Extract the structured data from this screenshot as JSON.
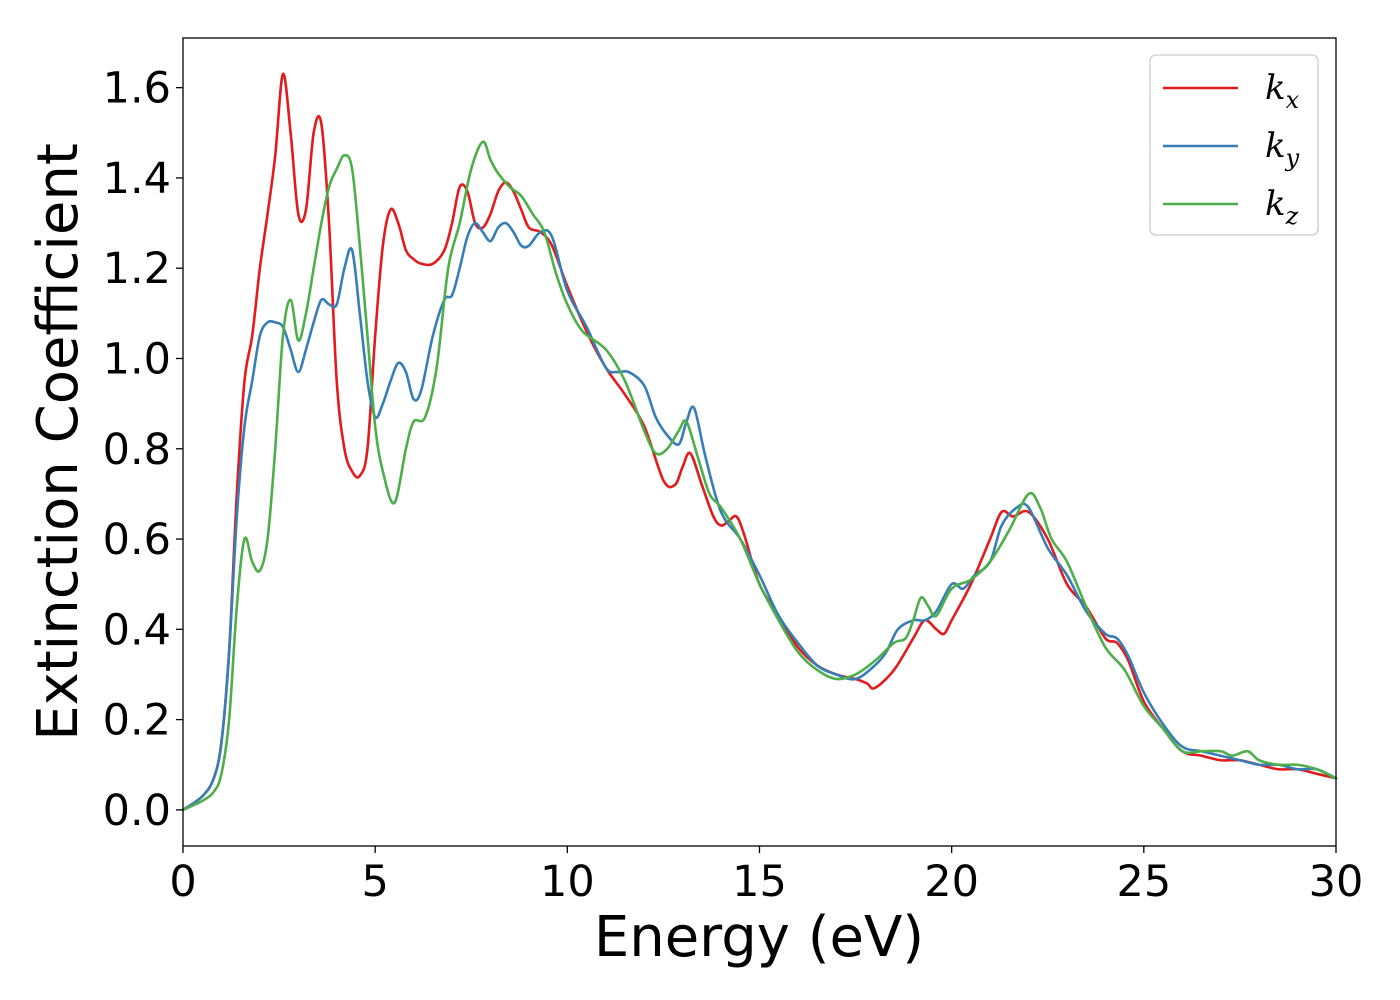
{
  "chart_data": {
    "type": "line",
    "title": "",
    "xlabel": "Energy (eV)",
    "ylabel": "Extinction Coefficient",
    "xlim": [
      0,
      30
    ],
    "ylim": [
      -0.08,
      1.71
    ],
    "xticks": [
      0,
      5,
      10,
      15,
      20,
      25,
      30
    ],
    "yticks": [
      0.0,
      0.2,
      0.4,
      0.6,
      0.8,
      1.0,
      1.2,
      1.4,
      1.6
    ],
    "grid": false,
    "legend_position": "top-right",
    "series": [
      {
        "name": "k_x",
        "legend_base": "k",
        "legend_sub": "x",
        "color": "#e41a1c",
        "x": [
          0,
          0.5,
          0.8,
          1.0,
          1.2,
          1.4,
          1.6,
          1.8,
          2.0,
          2.2,
          2.4,
          2.6,
          2.8,
          3.0,
          3.2,
          3.4,
          3.6,
          3.8,
          4.0,
          4.2,
          4.4,
          4.6,
          4.8,
          5.0,
          5.2,
          5.4,
          5.6,
          5.8,
          6.0,
          6.2,
          6.5,
          6.8,
          7.0,
          7.2,
          7.4,
          7.6,
          7.8,
          8.0,
          8.2,
          8.4,
          8.6,
          8.8,
          9.0,
          9.3,
          9.6,
          10.0,
          10.5,
          11.0,
          11.5,
          12.0,
          12.5,
          12.8,
          13.0,
          13.2,
          13.5,
          13.8,
          14.0,
          14.2,
          14.4,
          14.6,
          15.0,
          15.5,
          16.0,
          16.5,
          17.0,
          17.5,
          17.8,
          18.0,
          18.5,
          19.0,
          19.3,
          19.6,
          19.8,
          20.0,
          20.5,
          21.0,
          21.3,
          21.6,
          22.0,
          22.5,
          23.0,
          23.5,
          24.0,
          24.3,
          24.6,
          25.0,
          25.5,
          26.0,
          26.5,
          27.0,
          27.5,
          28.0,
          28.5,
          29.0,
          29.5,
          30.0
        ],
        "y": [
          0.0,
          0.03,
          0.07,
          0.15,
          0.35,
          0.7,
          0.95,
          1.05,
          1.2,
          1.32,
          1.45,
          1.63,
          1.5,
          1.32,
          1.33,
          1.5,
          1.52,
          1.3,
          0.95,
          0.8,
          0.75,
          0.74,
          0.8,
          1.05,
          1.25,
          1.33,
          1.3,
          1.24,
          1.22,
          1.21,
          1.21,
          1.24,
          1.3,
          1.38,
          1.37,
          1.3,
          1.29,
          1.32,
          1.37,
          1.39,
          1.37,
          1.33,
          1.29,
          1.28,
          1.25,
          1.16,
          1.06,
          0.98,
          0.92,
          0.85,
          0.73,
          0.72,
          0.76,
          0.79,
          0.72,
          0.65,
          0.63,
          0.64,
          0.65,
          0.61,
          0.5,
          0.43,
          0.36,
          0.32,
          0.3,
          0.29,
          0.28,
          0.27,
          0.31,
          0.38,
          0.42,
          0.4,
          0.39,
          0.42,
          0.5,
          0.6,
          0.66,
          0.65,
          0.66,
          0.6,
          0.5,
          0.45,
          0.38,
          0.37,
          0.33,
          0.24,
          0.18,
          0.13,
          0.12,
          0.11,
          0.11,
          0.1,
          0.09,
          0.09,
          0.08,
          0.07
        ]
      },
      {
        "name": "k_y",
        "legend_base": "k",
        "legend_sub": "y",
        "color": "#377eb8",
        "x": [
          0,
          0.5,
          0.8,
          1.0,
          1.2,
          1.4,
          1.6,
          1.8,
          2.0,
          2.2,
          2.4,
          2.6,
          2.8,
          3.0,
          3.2,
          3.4,
          3.6,
          3.8,
          4.0,
          4.2,
          4.4,
          4.6,
          4.8,
          5.0,
          5.2,
          5.4,
          5.6,
          5.8,
          6.0,
          6.2,
          6.5,
          6.8,
          7.0,
          7.2,
          7.4,
          7.6,
          7.8,
          8.0,
          8.2,
          8.4,
          8.6,
          8.8,
          9.0,
          9.3,
          9.6,
          10.0,
          10.5,
          11.0,
          11.3,
          11.6,
          12.0,
          12.3,
          12.6,
          12.9,
          13.1,
          13.3,
          13.6,
          14.0,
          14.5,
          15.0,
          15.5,
          16.0,
          16.5,
          17.0,
          17.5,
          18.0,
          18.3,
          18.6,
          19.0,
          19.3,
          19.6,
          20.0,
          20.3,
          20.6,
          21.0,
          21.3,
          21.7,
          22.0,
          22.5,
          23.0,
          23.5,
          24.0,
          24.3,
          24.6,
          25.0,
          25.5,
          26.0,
          26.5,
          27.0,
          27.5,
          28.0,
          28.5,
          29.0,
          29.5,
          30.0
        ],
        "y": [
          0.0,
          0.03,
          0.07,
          0.15,
          0.35,
          0.65,
          0.85,
          0.95,
          1.05,
          1.08,
          1.08,
          1.07,
          1.02,
          0.97,
          1.02,
          1.08,
          1.13,
          1.12,
          1.12,
          1.2,
          1.24,
          1.1,
          0.95,
          0.87,
          0.9,
          0.95,
          0.99,
          0.97,
          0.91,
          0.93,
          1.05,
          1.13,
          1.14,
          1.2,
          1.27,
          1.3,
          1.28,
          1.26,
          1.29,
          1.3,
          1.28,
          1.25,
          1.25,
          1.28,
          1.27,
          1.15,
          1.07,
          0.98,
          0.97,
          0.97,
          0.94,
          0.87,
          0.83,
          0.81,
          0.86,
          0.89,
          0.78,
          0.66,
          0.6,
          0.52,
          0.43,
          0.37,
          0.32,
          0.3,
          0.29,
          0.32,
          0.35,
          0.4,
          0.42,
          0.42,
          0.44,
          0.5,
          0.49,
          0.52,
          0.55,
          0.63,
          0.67,
          0.67,
          0.58,
          0.52,
          0.44,
          0.39,
          0.38,
          0.34,
          0.26,
          0.19,
          0.14,
          0.13,
          0.12,
          0.11,
          0.1,
          0.1,
          0.09,
          0.09,
          0.07
        ]
      },
      {
        "name": "k_z",
        "legend_base": "k",
        "legend_sub": "z",
        "color": "#4daf4a",
        "x": [
          0,
          0.5,
          0.8,
          1.0,
          1.2,
          1.4,
          1.6,
          1.8,
          2.0,
          2.2,
          2.4,
          2.6,
          2.8,
          3.0,
          3.2,
          3.4,
          3.6,
          3.8,
          4.0,
          4.2,
          4.4,
          4.6,
          4.8,
          5.0,
          5.2,
          5.5,
          5.8,
          6.0,
          6.3,
          6.6,
          6.9,
          7.2,
          7.5,
          7.8,
          8.0,
          8.2,
          8.5,
          8.8,
          9.1,
          9.4,
          9.7,
          10.0,
          10.4,
          11.0,
          11.5,
          12.0,
          12.3,
          12.6,
          12.9,
          13.1,
          13.4,
          13.7,
          14.0,
          14.5,
          15.0,
          15.5,
          16.0,
          16.5,
          17.0,
          17.5,
          18.0,
          18.5,
          18.8,
          19.0,
          19.2,
          19.4,
          19.6,
          20.0,
          20.5,
          21.0,
          21.5,
          22.0,
          22.3,
          22.6,
          23.0,
          23.5,
          24.0,
          24.5,
          25.0,
          25.5,
          26.0,
          26.5,
          27.0,
          27.3,
          27.7,
          28.0,
          28.5,
          29.0,
          29.5,
          30.0
        ],
        "y": [
          0.0,
          0.02,
          0.04,
          0.08,
          0.2,
          0.45,
          0.6,
          0.55,
          0.53,
          0.6,
          0.8,
          1.05,
          1.13,
          1.04,
          1.1,
          1.2,
          1.3,
          1.38,
          1.42,
          1.45,
          1.42,
          1.25,
          1.05,
          0.85,
          0.75,
          0.68,
          0.8,
          0.86,
          0.87,
          0.98,
          1.2,
          1.3,
          1.42,
          1.48,
          1.44,
          1.41,
          1.38,
          1.36,
          1.32,
          1.28,
          1.19,
          1.12,
          1.06,
          1.02,
          0.95,
          0.84,
          0.79,
          0.8,
          0.84,
          0.86,
          0.78,
          0.7,
          0.67,
          0.6,
          0.5,
          0.42,
          0.35,
          0.31,
          0.29,
          0.3,
          0.33,
          0.37,
          0.38,
          0.42,
          0.47,
          0.45,
          0.43,
          0.49,
          0.51,
          0.55,
          0.62,
          0.7,
          0.67,
          0.6,
          0.55,
          0.45,
          0.36,
          0.31,
          0.23,
          0.18,
          0.13,
          0.13,
          0.13,
          0.12,
          0.13,
          0.11,
          0.1,
          0.1,
          0.09,
          0.07
        ]
      }
    ]
  }
}
